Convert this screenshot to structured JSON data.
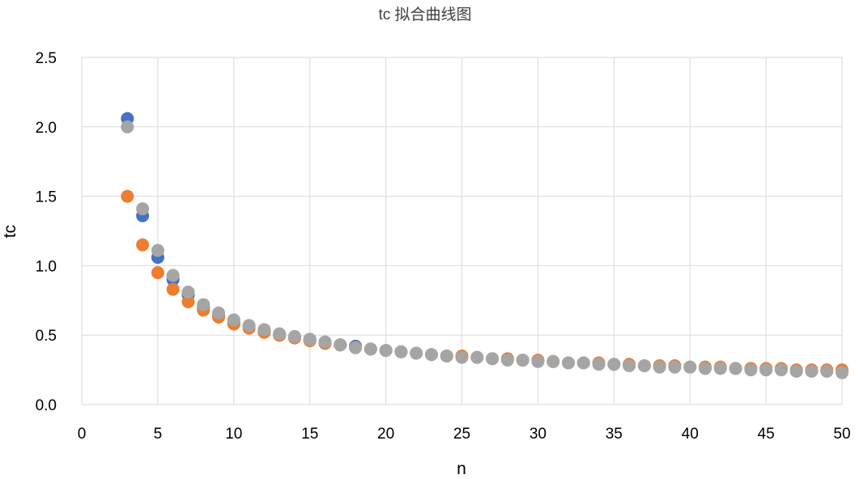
{
  "chart_data": {
    "type": "scatter",
    "title": "tc 拟合曲线图",
    "xlabel": "n",
    "ylabel": "tc",
    "xlim": [
      0,
      50
    ],
    "ylim": [
      0,
      2.5
    ],
    "x_ticks": [
      0,
      5,
      10,
      15,
      20,
      25,
      30,
      35,
      40,
      45,
      50
    ],
    "y_ticks": [
      0,
      0.5,
      1.0,
      1.5,
      2.0,
      2.5
    ],
    "x_tick_labels": [
      "0",
      "5",
      "10",
      "15",
      "20",
      "25",
      "30",
      "35",
      "40",
      "45",
      "50"
    ],
    "y_tick_labels": [
      "0.0",
      "0.5",
      "1.0",
      "1.5",
      "2.0",
      "2.5"
    ],
    "grid": true,
    "legend": "none",
    "series": [
      {
        "color": "#4472C4",
        "points": [
          [
            3,
            2.06
          ],
          [
            4,
            1.36
          ],
          [
            5,
            1.06
          ],
          [
            6,
            0.9
          ],
          [
            7,
            0.79
          ],
          [
            8,
            0.7
          ],
          [
            9,
            0.64
          ],
          [
            10,
            0.59
          ],
          [
            11,
            0.56
          ],
          [
            12,
            0.53
          ],
          [
            13,
            0.5
          ],
          [
            14,
            0.48
          ],
          [
            15,
            0.47
          ],
          [
            16,
            0.45
          ],
          [
            17,
            0.43
          ],
          [
            18,
            0.42
          ]
        ]
      },
      {
        "color": "#ED7D31",
        "points": [
          [
            3,
            1.5
          ],
          [
            4,
            1.15
          ],
          [
            5,
            0.95
          ],
          [
            6,
            0.83
          ],
          [
            7,
            0.74
          ],
          [
            8,
            0.68
          ],
          [
            9,
            0.63
          ],
          [
            10,
            0.58
          ],
          [
            11,
            0.55
          ],
          [
            12,
            0.52
          ],
          [
            13,
            0.5
          ],
          [
            14,
            0.48
          ],
          [
            15,
            0.46
          ],
          [
            16,
            0.44
          ],
          [
            17,
            0.43
          ],
          [
            18,
            0.41
          ],
          [
            19,
            0.4
          ],
          [
            20,
            0.39
          ],
          [
            21,
            0.38
          ],
          [
            22,
            0.37
          ],
          [
            23,
            0.36
          ],
          [
            24,
            0.35
          ],
          [
            25,
            0.35
          ],
          [
            26,
            0.34
          ],
          [
            27,
            0.33
          ],
          [
            28,
            0.33
          ],
          [
            29,
            0.32
          ],
          [
            30,
            0.32
          ],
          [
            31,
            0.31
          ],
          [
            32,
            0.3
          ],
          [
            33,
            0.3
          ],
          [
            34,
            0.3
          ],
          [
            35,
            0.29
          ],
          [
            36,
            0.29
          ],
          [
            37,
            0.28
          ],
          [
            38,
            0.28
          ],
          [
            39,
            0.28
          ],
          [
            40,
            0.27
          ],
          [
            41,
            0.27
          ],
          [
            42,
            0.27
          ],
          [
            43,
            0.26
          ],
          [
            44,
            0.26
          ],
          [
            45,
            0.26
          ],
          [
            46,
            0.26
          ],
          [
            47,
            0.25
          ],
          [
            48,
            0.25
          ],
          [
            49,
            0.25
          ],
          [
            50,
            0.25
          ]
        ]
      },
      {
        "color": "#A5A5A5",
        "points": [
          [
            3,
            2.0
          ],
          [
            4,
            1.41
          ],
          [
            5,
            1.11
          ],
          [
            6,
            0.93
          ],
          [
            7,
            0.81
          ],
          [
            8,
            0.72
          ],
          [
            9,
            0.66
          ],
          [
            10,
            0.61
          ],
          [
            11,
            0.57
          ],
          [
            12,
            0.54
          ],
          [
            13,
            0.51
          ],
          [
            14,
            0.49
          ],
          [
            15,
            0.47
          ],
          [
            16,
            0.45
          ],
          [
            17,
            0.43
          ],
          [
            18,
            0.41
          ],
          [
            19,
            0.4
          ],
          [
            20,
            0.39
          ],
          [
            21,
            0.38
          ],
          [
            22,
            0.37
          ],
          [
            23,
            0.36
          ],
          [
            24,
            0.35
          ],
          [
            25,
            0.34
          ],
          [
            26,
            0.34
          ],
          [
            27,
            0.33
          ],
          [
            28,
            0.32
          ],
          [
            29,
            0.32
          ],
          [
            30,
            0.31
          ],
          [
            31,
            0.31
          ],
          [
            32,
            0.3
          ],
          [
            33,
            0.3
          ],
          [
            34,
            0.29
          ],
          [
            35,
            0.29
          ],
          [
            36,
            0.28
          ],
          [
            37,
            0.28
          ],
          [
            38,
            0.27
          ],
          [
            39,
            0.27
          ],
          [
            40,
            0.27
          ],
          [
            41,
            0.26
          ],
          [
            42,
            0.26
          ],
          [
            43,
            0.26
          ],
          [
            44,
            0.25
          ],
          [
            45,
            0.25
          ],
          [
            46,
            0.25
          ],
          [
            47,
            0.24
          ],
          [
            48,
            0.24
          ],
          [
            49,
            0.24
          ],
          [
            50,
            0.23
          ]
        ]
      }
    ]
  }
}
